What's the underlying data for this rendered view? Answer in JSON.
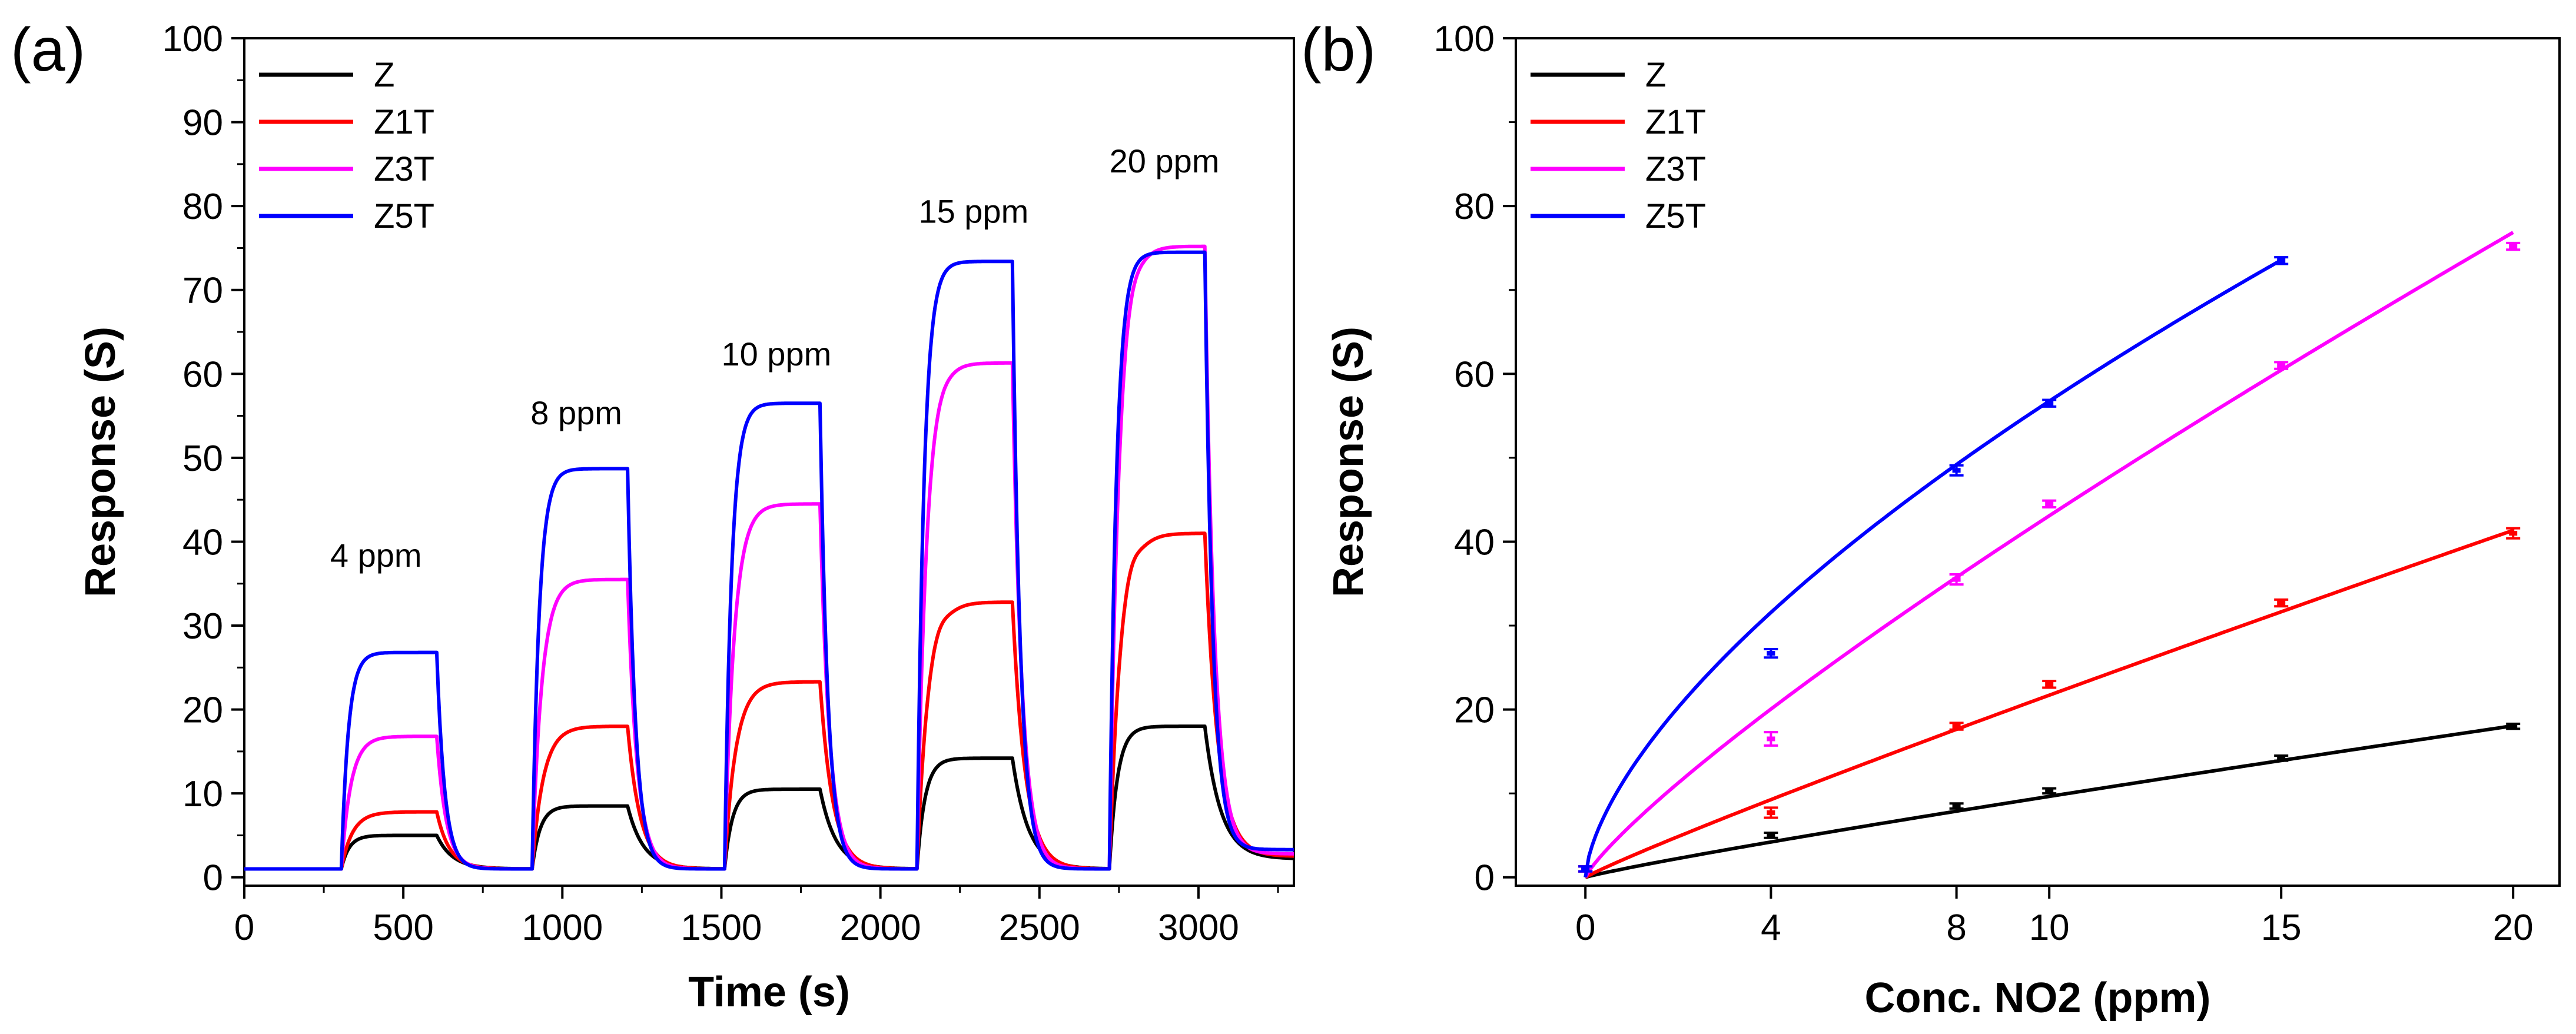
{
  "chart_data": [
    {
      "type": "line",
      "panel_label": "(a)",
      "xlabel": "Time (s)",
      "ylabel": "Response (S)",
      "xlim": [
        0,
        3300
      ],
      "ylim": [
        -1,
        100
      ],
      "xticks": [
        0,
        500,
        1000,
        1500,
        2000,
        2500,
        3000
      ],
      "yticks": [
        0,
        10,
        20,
        30,
        40,
        50,
        60,
        70,
        80,
        90,
        100
      ],
      "legend_position": "top-left",
      "pulses": [
        {
          "on": 305,
          "off": 605,
          "label": "4 ppm"
        },
        {
          "on": 905,
          "off": 1205,
          "label": "8 ppm"
        },
        {
          "on": 1510,
          "off": 1810,
          "label": "10 ppm"
        },
        {
          "on": 2115,
          "off": 2415,
          "label": "15 ppm"
        },
        {
          "on": 2720,
          "off": 3020,
          "label": "20 ppm"
        }
      ],
      "baseline": 1.0,
      "tail_end": 3300,
      "series": [
        {
          "name": "Z",
          "color": "#000000",
          "peaks": [
            5.0,
            8.5,
            10.5,
            14.2,
            18.0
          ],
          "rise_tau": 25,
          "recovery_tau": 50,
          "tail_level": 2.2
        },
        {
          "name": "Z1T",
          "color": "#ff0000",
          "peaks": [
            7.8,
            18.0,
            23.3,
            32.8,
            41.0
          ],
          "overshoot": [
            0,
            0,
            0,
            1.0,
            1.5
          ],
          "rise_tau": 35,
          "recovery_tau": 40,
          "tail_level": 2.5
        },
        {
          "name": "Z3T",
          "color": "#ff00ff",
          "peaks": [
            16.8,
            35.5,
            44.5,
            61.3,
            75.2
          ],
          "overshoot": [
            0,
            0,
            0,
            0.5,
            1.2
          ],
          "rise_tau": 30,
          "recovery_tau": 30,
          "tail_level": 2.8
        },
        {
          "name": "Z5T",
          "color": "#0000ff",
          "peaks": [
            26.8,
            48.7,
            56.5,
            73.4,
            74.5
          ],
          "rise_tau": 22,
          "recovery_tau": 25,
          "tail_level": 3.3
        }
      ],
      "annotations": [
        {
          "text": "4 ppm",
          "x": 270,
          "y": 37
        },
        {
          "text": "8 ppm",
          "x": 900,
          "y": 54
        },
        {
          "text": "10 ppm",
          "x": 1500,
          "y": 61
        },
        {
          "text": "15 ppm",
          "x": 2120,
          "y": 78
        },
        {
          "text": "20 ppm",
          "x": 2720,
          "y": 84
        }
      ]
    },
    {
      "type": "scatter",
      "panel_label": "(b)",
      "xlabel": "Conc. NO2 (ppm)",
      "ylabel": "Response (S)",
      "xlim": [
        -1.5,
        21
      ],
      "ylim": [
        -1,
        100
      ],
      "xticks": [
        0,
        4,
        8,
        10,
        15,
        20
      ],
      "yticks": [
        0,
        20,
        40,
        60,
        80,
        100
      ],
      "legend_position": "top-left",
      "series": [
        {
          "name": "Z",
          "color": "#000000",
          "x": [
            0,
            4,
            8,
            10,
            15,
            20
          ],
          "y": [
            1.0,
            5.0,
            8.5,
            10.3,
            14.2,
            18.0
          ],
          "yerr": [
            0.3,
            0.3,
            0.3,
            0.3,
            0.3,
            0.3
          ],
          "fit": {
            "a": 1.2,
            "b": 0.905,
            "xmax": 20
          }
        },
        {
          "name": "Z1T",
          "color": "#ff0000",
          "x": [
            0,
            4,
            8,
            10,
            15,
            20
          ],
          "y": [
            1.0,
            7.7,
            18.0,
            23.0,
            32.7,
            41.0
          ],
          "yerr": [
            0.3,
            0.6,
            0.4,
            0.4,
            0.4,
            0.6
          ],
          "fit": {
            "a": 2.55,
            "b": 0.93,
            "xmax": 20
          }
        },
        {
          "name": "Z3T",
          "color": "#ff00ff",
          "x": [
            0,
            4,
            8,
            10,
            15,
            20
          ],
          "y": [
            1.0,
            16.5,
            35.5,
            44.5,
            61.0,
            75.2
          ],
          "yerr": [
            0.3,
            0.8,
            0.6,
            0.4,
            0.4,
            0.4
          ],
          "fit": {
            "a": 6.3,
            "b": 0.835,
            "xmax": 20
          }
        },
        {
          "name": "Z5T",
          "color": "#0000ff",
          "x": [
            0,
            4,
            8,
            10,
            15
          ],
          "y": [
            1.0,
            26.7,
            48.5,
            56.5,
            73.5
          ],
          "yerr": [
            0.3,
            0.5,
            0.6,
            0.4,
            0.4
          ],
          "fit": {
            "a": 13.0,
            "b": 0.64,
            "xmax": 15
          }
        }
      ]
    }
  ]
}
